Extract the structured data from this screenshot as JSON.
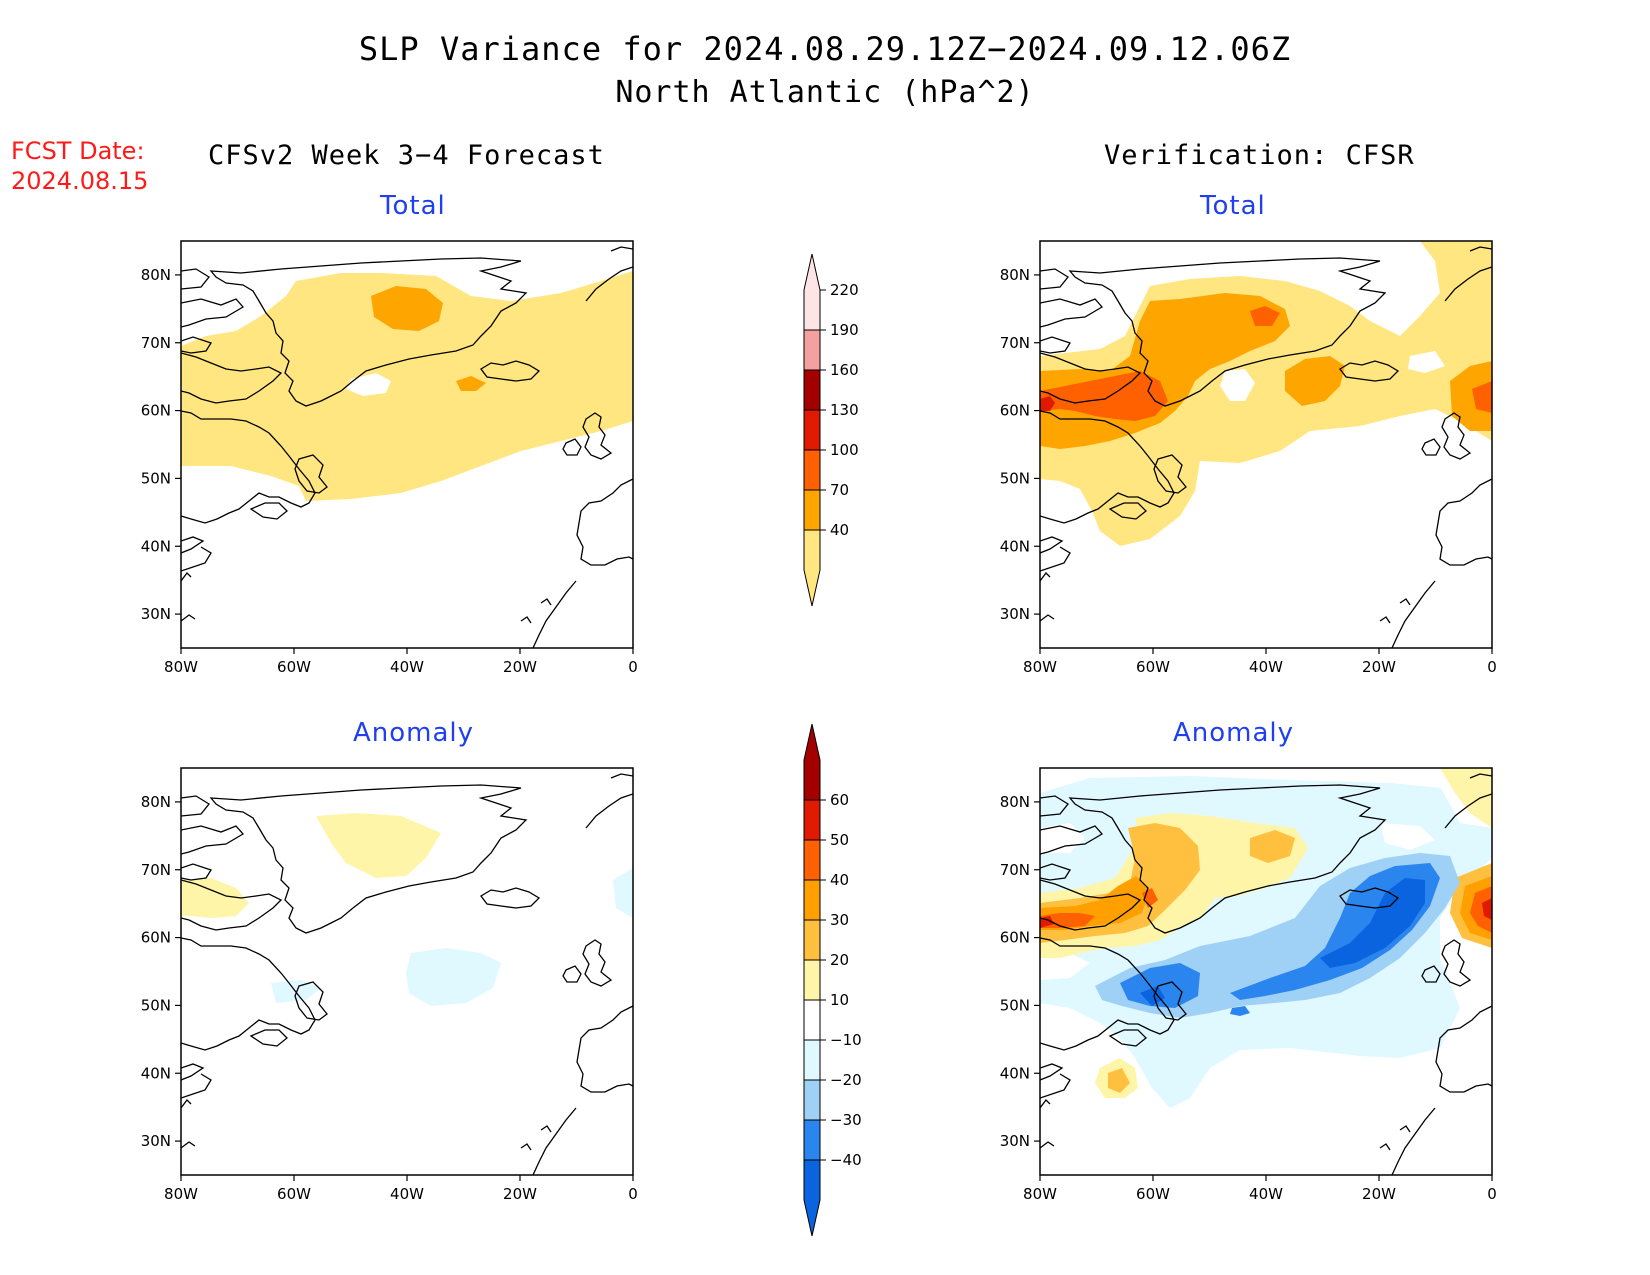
{
  "title": "SLP Variance for 2024.08.29.12Z−2024.09.12.06Z",
  "subtitle": "North Atlantic (hPa^2)",
  "fcst_date": {
    "line1": "FCST Date:",
    "line2": "2024.08.15"
  },
  "columns": {
    "left": "CFSv2 Week 3−4 Forecast",
    "right": "Verification: CFSR"
  },
  "panel_titles": {
    "total": "Total",
    "anomaly": "Anomaly"
  },
  "map_axes": {
    "lon_ticks": [
      "80W",
      "60W",
      "40W",
      "20W",
      "0"
    ],
    "lat_ticks": [
      "80N",
      "70N",
      "60N",
      "50N",
      "40N",
      "30N"
    ],
    "lon_range": [
      -80,
      0
    ],
    "lat_range": [
      25,
      85
    ]
  },
  "colorbars": {
    "total": {
      "labels": [
        "40",
        "70",
        "100",
        "130",
        "160",
        "190",
        "220"
      ],
      "colors": [
        "#ffe680",
        "#ffa500",
        "#ff6000",
        "#e01a00",
        "#a50000",
        "#f4a0a0",
        "#fde5e5"
      ]
    },
    "anomaly": {
      "labels": [
        "−40",
        "−30",
        "−20",
        "−10",
        "10",
        "20",
        "30",
        "40",
        "50",
        "60"
      ],
      "colors": [
        "#0a64e0",
        "#2a85ee",
        "#9fd0f5",
        "#e0f8ff",
        "#ffffff",
        "#fff5a8",
        "#ffc040",
        "#ffa000",
        "#ff6000",
        "#e01a00",
        "#a50000"
      ]
    }
  },
  "colors": {
    "title_blue": "#1f3ff0",
    "fcst_red": "#ff1a1a"
  }
}
